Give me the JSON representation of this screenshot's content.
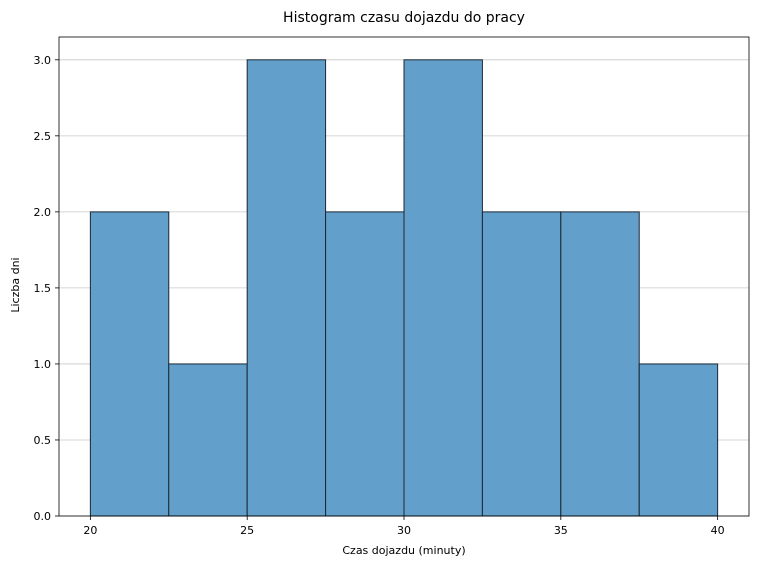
{
  "chart_data": {
    "type": "bar",
    "title": "Histogram czasu dojazdu do pracy",
    "xlabel": "Czas dojazdu (minuty)",
    "ylabel": "Liczba dni",
    "bins": [
      {
        "start": 20,
        "end": 22.5,
        "count": 2
      },
      {
        "start": 22.5,
        "end": 25,
        "count": 1
      },
      {
        "start": 25,
        "end": 27.5,
        "count": 3
      },
      {
        "start": 27.5,
        "end": 30,
        "count": 2
      },
      {
        "start": 30,
        "end": 32.5,
        "count": 3
      },
      {
        "start": 32.5,
        "end": 35,
        "count": 2
      },
      {
        "start": 35,
        "end": 37.5,
        "count": 2
      },
      {
        "start": 37.5,
        "end": 40,
        "count": 1
      }
    ],
    "xlim": [
      19,
      41
    ],
    "ylim": [
      0,
      3.15
    ],
    "xticks": [
      20,
      25,
      30,
      35,
      40
    ],
    "xtick_labels": [
      "20",
      "25",
      "30",
      "35",
      "40"
    ],
    "yticks": [
      0,
      0.5,
      1,
      1.5,
      2,
      2.5,
      3
    ],
    "ytick_labels": [
      "0.0",
      "0.5",
      "1.0",
      "1.5",
      "2.0",
      "2.5",
      "3.0"
    ],
    "grid": "y",
    "bar_color": "#629fca",
    "edge_color": "#1c2733",
    "grid_color": "#c8c8c8"
  }
}
